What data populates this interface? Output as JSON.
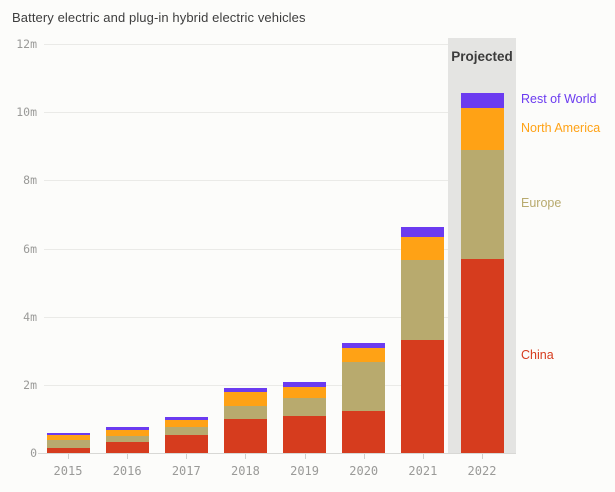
{
  "title": "Battery electric and plug-in hybrid electric vehicles",
  "chart_data": {
    "type": "bar",
    "stacked": true,
    "title": "Battery electric and plug-in hybrid electric vehicles",
    "unit": "millions of vehicles",
    "categories": [
      "2015",
      "2016",
      "2017",
      "2018",
      "2019",
      "2020",
      "2021",
      "2022"
    ],
    "series": [
      {
        "name": "China",
        "color": "#D63C1E",
        "values": [
          0.14,
          0.32,
          0.53,
          1.0,
          1.1,
          1.24,
          3.32,
          5.7
        ]
      },
      {
        "name": "Europe",
        "color": "#B8AA6E",
        "values": [
          0.23,
          0.18,
          0.24,
          0.38,
          0.51,
          1.44,
          2.35,
          3.2
        ]
      },
      {
        "name": "North America",
        "color": "#FFA215",
        "values": [
          0.16,
          0.17,
          0.21,
          0.42,
          0.32,
          0.39,
          0.68,
          1.22
        ]
      },
      {
        "name": "Rest of World",
        "color": "#6B3BF0",
        "values": [
          0.06,
          0.08,
          0.09,
          0.1,
          0.15,
          0.17,
          0.29,
          0.45
        ]
      }
    ],
    "y_ticks": [
      {
        "value": 12,
        "label": "12m"
      },
      {
        "value": 10,
        "label": "10m"
      },
      {
        "value": 8,
        "label": "8m"
      },
      {
        "value": 6,
        "label": "6m"
      },
      {
        "value": 4,
        "label": "4m"
      },
      {
        "value": 2,
        "label": "2m"
      },
      {
        "value": 0,
        "label": "0"
      }
    ],
    "ylim": [
      0,
      12
    ],
    "grid": true,
    "legend_position": "right",
    "legend_order": [
      "Rest of World",
      "North America",
      "Europe",
      "China"
    ],
    "annotation": {
      "label": "Projected",
      "category": "2022"
    }
  }
}
